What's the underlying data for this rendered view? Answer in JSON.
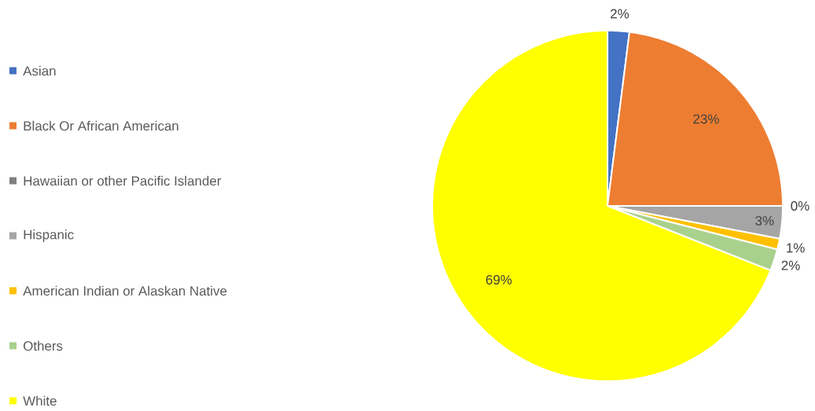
{
  "chart_data": {
    "type": "pie",
    "categories": [
      "Asian",
      "Black Or African American",
      "Hawaiian or other Pacific Islander",
      "Hispanic",
      "American Indian or Alaskan Native",
      "Others",
      "White"
    ],
    "values": [
      2,
      23,
      0,
      3,
      1,
      2,
      69
    ],
    "value_labels": [
      "2%",
      "23%",
      "0%",
      "3%",
      "1%",
      "2%",
      "69%"
    ],
    "colors": [
      "#4472c4",
      "#ed7d31",
      "#7f7f7f",
      "#a5a5a5",
      "#ffc000",
      "#a9d18e",
      "#ffff00"
    ],
    "legend": "left"
  }
}
